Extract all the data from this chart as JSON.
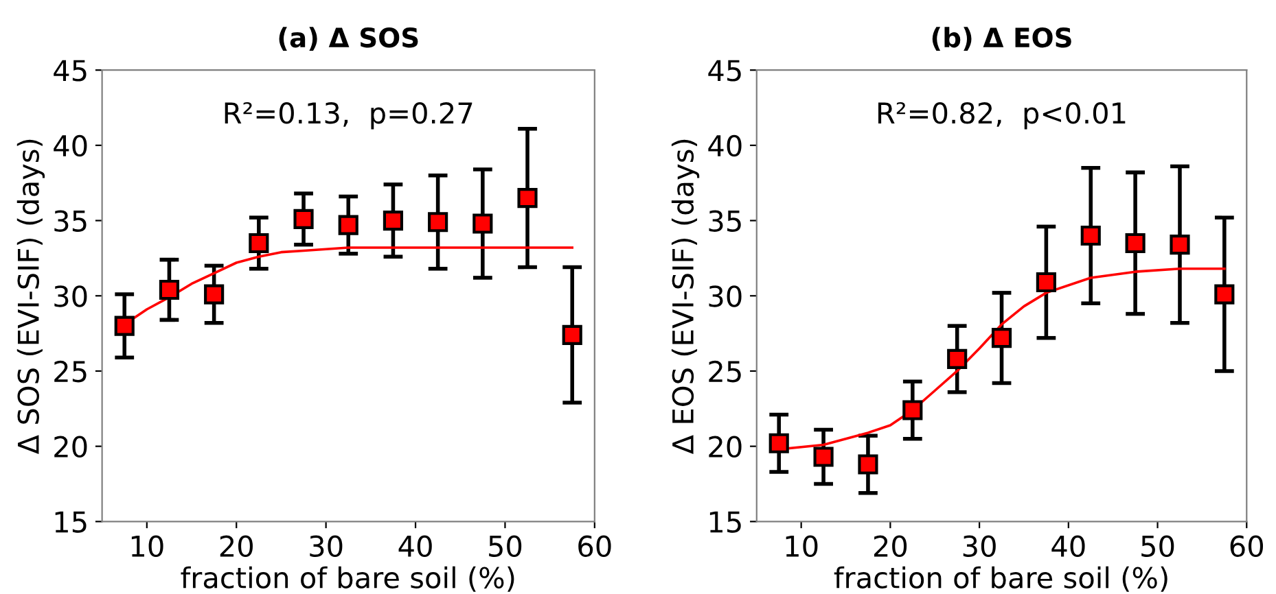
{
  "chart_data": [
    {
      "type": "scatter",
      "title": "(a) Δ SOS",
      "xlabel": "fraction of bare soil (%)",
      "ylabel": "Δ SOS (EVI-SIF) (days)",
      "annotations": [
        "R²=0.13,  p=0.27"
      ],
      "xlim": [
        5,
        60
      ],
      "xticks": [
        10,
        20,
        30,
        40,
        50,
        60
      ],
      "ylim": [
        15,
        45
      ],
      "yticks": [
        15,
        20,
        25,
        30,
        35,
        40,
        45
      ],
      "grid": false,
      "legend": false,
      "series": [
        {
          "color": "#ff0000",
          "marker": "square",
          "x": [
            7.5,
            12.5,
            17.5,
            22.5,
            27.5,
            32.5,
            37.5,
            42.5,
            47.5,
            52.5,
            57.5
          ],
          "values": [
            28.0,
            30.4,
            30.1,
            33.5,
            35.1,
            34.7,
            35.0,
            34.9,
            34.8,
            36.5,
            27.4
          ],
          "errors": [
            2.1,
            2.0,
            1.9,
            1.7,
            1.7,
            1.9,
            2.4,
            3.1,
            3.6,
            4.6,
            4.5
          ]
        },
        {
          "type": "line",
          "color": "#ff0000",
          "marker": "none",
          "line_style": "solid",
          "x": [
            7.5,
            10,
            12.5,
            15,
            17.5,
            20,
            22.5,
            25,
            27.5,
            32.5,
            37.5,
            42.5,
            47.5,
            52.5,
            57.5
          ],
          "values": [
            28.1,
            29.1,
            29.9,
            30.8,
            31.5,
            32.2,
            32.6,
            32.9,
            33.0,
            33.2,
            33.2,
            33.2,
            33.2,
            33.2,
            33.2
          ]
        }
      ]
    },
    {
      "type": "scatter",
      "title": "(b) Δ EOS",
      "xlabel": "fraction of bare soil (%)",
      "ylabel": "Δ EOS (EVI-SIF) (days)",
      "annotations": [
        "R²=0.82,  p<0.01"
      ],
      "xlim": [
        5,
        60
      ],
      "xticks": [
        10,
        20,
        30,
        40,
        50,
        60
      ],
      "ylim": [
        15,
        45
      ],
      "yticks": [
        15,
        20,
        25,
        30,
        35,
        40,
        45
      ],
      "grid": false,
      "legend": false,
      "series": [
        {
          "color": "#ff0000",
          "marker": "square",
          "x": [
            7.5,
            12.5,
            17.5,
            22.5,
            27.5,
            32.5,
            37.5,
            42.5,
            47.5,
            52.5,
            57.5
          ],
          "values": [
            20.2,
            19.3,
            18.8,
            22.4,
            25.8,
            27.2,
            30.9,
            34.0,
            33.5,
            33.4,
            30.1
          ],
          "errors": [
            1.9,
            1.8,
            1.9,
            1.9,
            2.2,
            3.0,
            3.7,
            4.5,
            4.7,
            5.2,
            5.1
          ]
        },
        {
          "type": "line",
          "color": "#ff0000",
          "marker": "none",
          "line_style": "solid",
          "x": [
            7.5,
            12.5,
            17.5,
            20,
            22.5,
            25,
            27.5,
            30,
            32.5,
            35,
            37.5,
            42.5,
            47.5,
            52.5,
            57.5
          ],
          "values": [
            19.8,
            20.1,
            20.9,
            21.4,
            22.4,
            23.7,
            25.0,
            26.5,
            28.1,
            29.3,
            30.2,
            31.2,
            31.6,
            31.8,
            31.8
          ]
        }
      ]
    }
  ]
}
